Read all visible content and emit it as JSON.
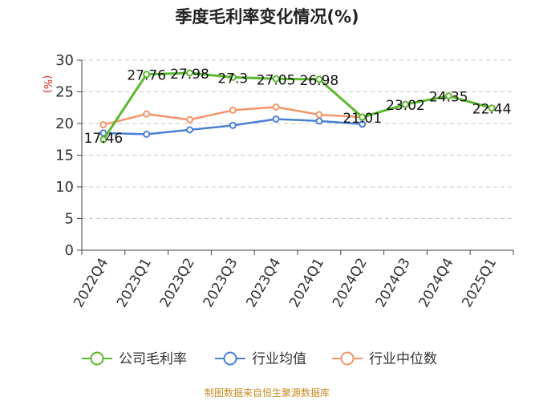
{
  "chart_data": {
    "type": "line",
    "title": "季度毛利率变化情况(%)",
    "ylabel": "(%)",
    "ylim": [
      0,
      30
    ],
    "yticks": [
      "0",
      "5",
      "10",
      "15",
      "20",
      "25",
      "30"
    ],
    "grid": true,
    "categories": [
      "2022Q4",
      "2023Q1",
      "2023Q2",
      "2023Q3",
      "2023Q4",
      "2024Q1",
      "2024Q2",
      "2024Q3",
      "2024Q4",
      "2025Q1"
    ],
    "series": [
      {
        "name": "公司毛利率",
        "color": "#5cb82e",
        "values": [
          17.46,
          27.76,
          27.98,
          27.3,
          27.05,
          26.98,
          21.01,
          23.02,
          24.35,
          22.44
        ],
        "labels": [
          "17.46",
          "27.76",
          "27.98",
          "27.3",
          "27.05",
          "26.98",
          "21.01",
          "23.02",
          "24.35",
          "22.44"
        ]
      },
      {
        "name": "行业均值",
        "color": "#4a7fd6",
        "values": [
          18.5,
          18.3,
          19.0,
          19.7,
          20.7,
          20.4,
          19.9,
          null,
          null,
          null
        ]
      },
      {
        "name": "行业中位数",
        "color": "#f4956a",
        "values": [
          19.8,
          21.5,
          20.6,
          22.1,
          22.6,
          21.4,
          21.0,
          null,
          null,
          null
        ]
      }
    ],
    "legend_position": "bottom",
    "source": "制图数据来自恒生聚源数据库"
  }
}
